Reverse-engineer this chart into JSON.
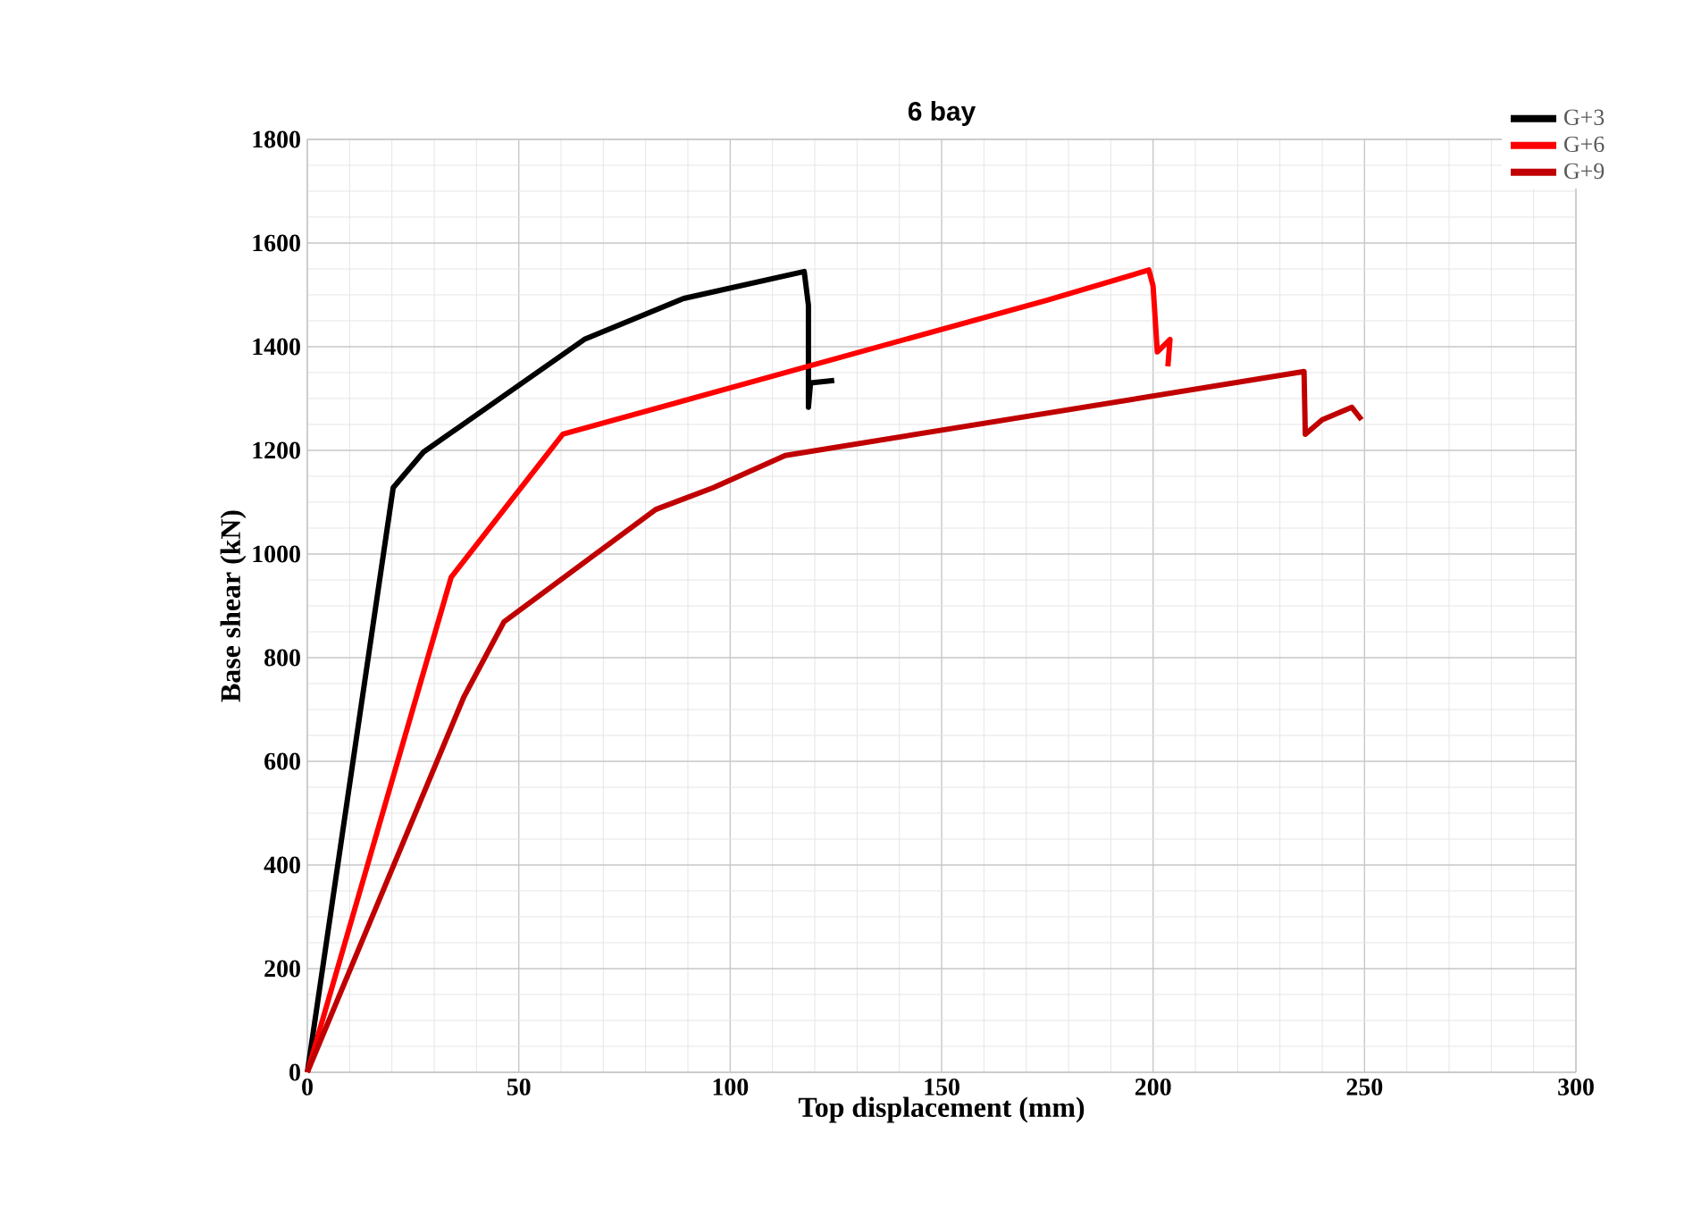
{
  "chart_data": {
    "type": "line",
    "title": "6 bay",
    "xlabel": "Top displacement (mm)",
    "ylabel": "Base shear (kN)",
    "xlim": [
      0,
      300
    ],
    "ylim": [
      0,
      1800
    ],
    "xticks": [
      0,
      50,
      100,
      150,
      200,
      250,
      300
    ],
    "yticks": [
      0,
      200,
      400,
      600,
      800,
      1000,
      1200,
      1400,
      1600,
      1800
    ],
    "grid": true,
    "legend": "top right",
    "marker": "none",
    "line_style": "solid",
    "series": [
      {
        "name": "G+3",
        "color": "#000000",
        "x": [
          0,
          20.3,
          27.5,
          65.5,
          89,
          117.5,
          118.5,
          118.5,
          119,
          124.6
        ],
        "values": [
          0,
          1128,
          1197,
          1414,
          1493,
          1545,
          1480,
          1283,
          1330,
          1335
        ]
      },
      {
        "name": "G+6",
        "color": "#ff0000",
        "x": [
          0,
          34,
          60.4,
          175,
          199,
          200,
          201,
          204,
          203.5
        ],
        "values": [
          0,
          955,
          1231,
          1490,
          1548,
          1517,
          1390,
          1414,
          1362
        ]
      },
      {
        "name": "G+9",
        "color": "#c00000",
        "x": [
          0,
          37,
          46.5,
          82.4,
          96,
          113,
          235.7,
          236,
          240,
          247,
          249.3
        ],
        "values": [
          0,
          724,
          869,
          1086,
          1128,
          1190,
          1352,
          1231,
          1259,
          1283,
          1259
        ]
      }
    ]
  }
}
